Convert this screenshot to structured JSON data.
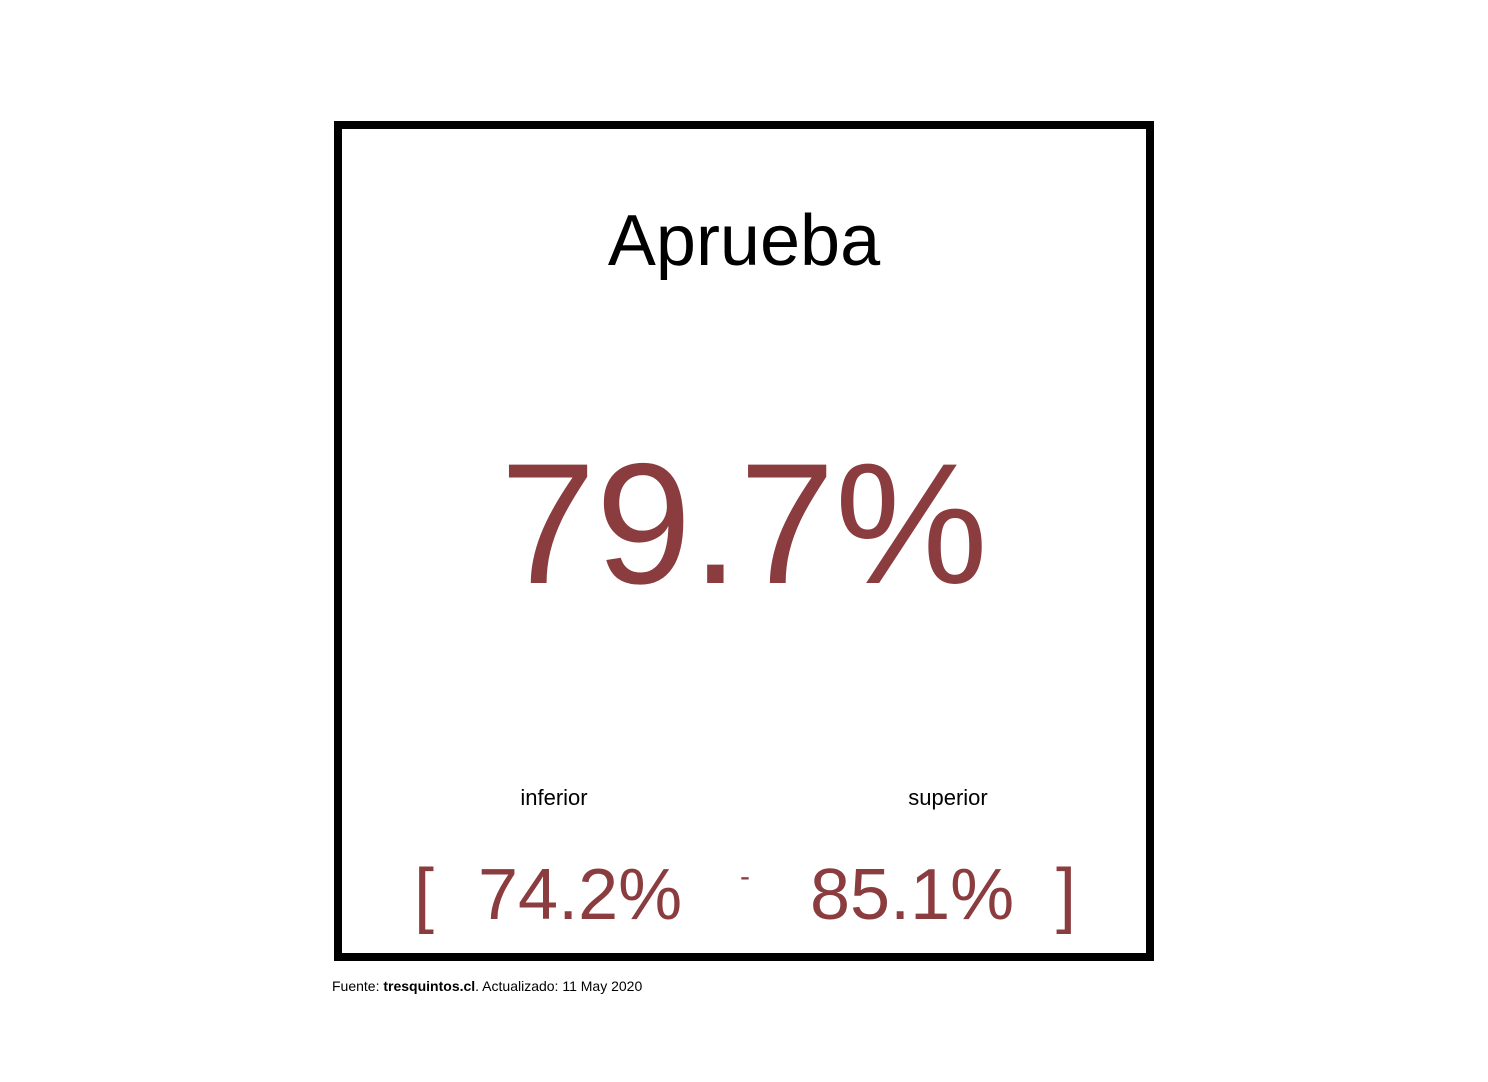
{
  "card": {
    "title": "Aprueba",
    "main_value": "79.7%",
    "lower_label": "inferior",
    "upper_label": "superior",
    "bracket_open": "[",
    "lower_value": "74.2%",
    "dash": "-",
    "upper_value": "85.1%",
    "bracket_close": "]"
  },
  "footer": {
    "prefix": "Fuente: ",
    "source": "tresquintos.cl",
    "suffix": ". Actualizado: 11 May 2020"
  },
  "colors": {
    "accent": "#8a3c3f",
    "text": "#000000",
    "border": "#000000",
    "background": "#ffffff"
  }
}
